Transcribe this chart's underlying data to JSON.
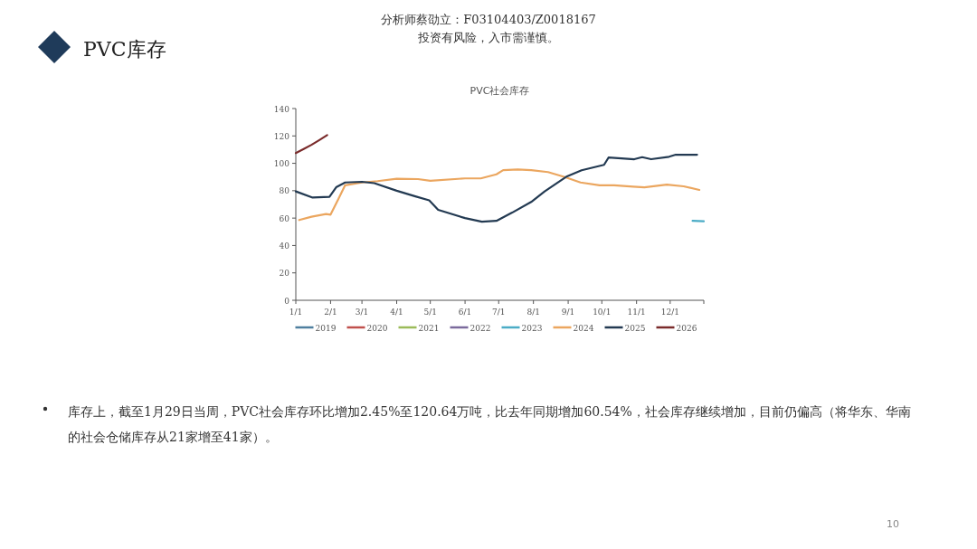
{
  "chart_data": {
    "type": "line",
    "title": "PVC社会库存",
    "annotations": [
      "PVC库存",
      "分析师蔡劭立：F03104403/Z0018167",
      "投资有风险，入市需谨慎。",
      "库存上，截至1月29日当周，PVC社会库存环比增加2.45%至120.64万吨，比去年同期增加60.54%，社会库存继续增加，目前仍偏高（将华东、华南的社会仓储库存从21家增至41家）。",
      "10"
    ],
    "xlim": [
      "--01-01",
      "--12-31"
    ],
    "xticks": [
      {
        "value": "--01-01",
        "label": "1/1"
      },
      {
        "value": "--02-01",
        "label": "2/1"
      },
      {
        "value": "--03-01",
        "label": "3/1"
      },
      {
        "value": "--04-01",
        "label": "4/1"
      },
      {
        "value": "--05-01",
        "label": "5/1"
      },
      {
        "value": "--06-01",
        "label": "6/1"
      },
      {
        "value": "--07-01",
        "label": "7/1"
      },
      {
        "value": "--08-01",
        "label": "8/1"
      },
      {
        "value": "--09-01",
        "label": "9/1"
      },
      {
        "value": "--10-01",
        "label": "10/1"
      },
      {
        "value": "--11-01",
        "label": "11/1"
      },
      {
        "value": "--12-01",
        "label": "12/1"
      }
    ],
    "ylim": [
      0,
      140
    ],
    "yticks": [
      0,
      20,
      40,
      60,
      80,
      100,
      120,
      140
    ],
    "grid": false,
    "legend": "bottom",
    "marker": "none",
    "line_style": "solid",
    "series": [
      {
        "name": "2019",
        "color": "#4f7f9f"
      },
      {
        "name": "2020",
        "color": "#c0504d"
      },
      {
        "name": "2021",
        "color": "#9bbb59"
      },
      {
        "name": "2022",
        "color": "#7b6a9c"
      },
      {
        "name": "2023",
        "color": "#4bacc6",
        "x": [
          "--12-21",
          "--12-31"
        ],
        "values": [
          58,
          57.7
        ]
      },
      {
        "name": "2024",
        "color": "#eba65f",
        "x": [
          "--01-04",
          "--01-15",
          "--01-28",
          "--02-01",
          "--02-08",
          "--02-14",
          "--03-01",
          "--03-15",
          "--04-01",
          "--04-20",
          "--05-01",
          "--06-01",
          "--06-15",
          "--06-29",
          "--07-05",
          "--07-18",
          "--07-30",
          "--08-14",
          "--08-29",
          "--09-12",
          "--09-29",
          "--10-12",
          "--10-29",
          "--11-08",
          "--11-28",
          "--12-13",
          "--12-27"
        ],
        "values": [
          58.6,
          61,
          63,
          62.5,
          74,
          84,
          86,
          87,
          88.7,
          88.5,
          87.2,
          89,
          89,
          92,
          95,
          95.5,
          95,
          93.6,
          90,
          86,
          84,
          84,
          83,
          82.5,
          84.5,
          83.2,
          80.6
        ]
      },
      {
        "name": "2025",
        "color": "#233a52",
        "x": [
          "--01-01",
          "--01-16",
          "--01-31",
          "--02-06",
          "--02-14",
          "--03-01",
          "--03-12",
          "--04-01",
          "--04-17",
          "--04-30",
          "--05-08",
          "--06-01",
          "--06-16",
          "--06-29",
          "--07-13",
          "--07-30",
          "--08-11",
          "--08-31",
          "--09-13",
          "--10-03",
          "--10-07",
          "--10-30",
          "--11-06",
          "--11-14",
          "--11-30",
          "--12-06",
          "--12-25"
        ],
        "values": [
          79.5,
          75,
          75.5,
          82.5,
          86,
          86.5,
          85.5,
          80,
          76,
          73,
          66,
          60,
          57.4,
          58,
          64,
          71.8,
          79.5,
          90.5,
          94.9,
          98.9,
          104.2,
          103,
          104.5,
          103,
          104.8,
          106.3,
          106.3
        ]
      },
      {
        "name": "2026",
        "color": "#7a2b2b",
        "x": [
          "--01-01",
          "--01-08",
          "--01-15",
          "--01-22",
          "--01-29"
        ],
        "values": [
          107.5,
          110.5,
          113.5,
          117,
          120.6
        ]
      }
    ]
  }
}
